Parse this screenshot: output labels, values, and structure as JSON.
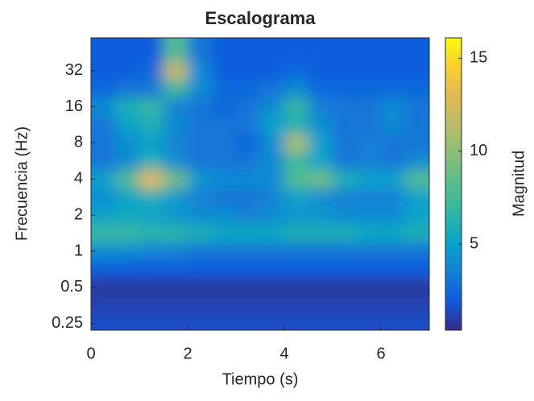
{
  "chart_data": {
    "type": "heatmap",
    "title": "Escalograma",
    "xlabel": "Tiempo (s)",
    "ylabel": "Frecuencia (Hz)",
    "colorbar_label": "Magnitud",
    "colormap": "parula",
    "yscale": "log",
    "xlim": [
      0,
      7
    ],
    "ylim": [
      0.22,
      60
    ],
    "clim": [
      0.37,
      16.1
    ],
    "xticks": [
      0,
      2,
      4,
      6
    ],
    "yticks": [
      0.25,
      0.5,
      1,
      2,
      4,
      8,
      16,
      32
    ],
    "cticks": [
      5,
      10,
      15
    ],
    "x": [
      0.25,
      0.75,
      1.25,
      1.75,
      2.25,
      2.75,
      3.25,
      3.75,
      4.25,
      4.75,
      5.25,
      5.75,
      6.25,
      6.75
    ],
    "y": [
      0.25,
      0.35,
      0.5,
      0.71,
      1,
      1.41,
      2,
      2.83,
      4,
      5.66,
      8,
      11.3,
      16,
      22.6,
      32,
      45
    ],
    "z": [
      [
        1.5,
        1.5,
        1.5,
        1.5,
        1.5,
        1.5,
        1.5,
        1.5,
        1.5,
        1.5,
        1.5,
        1.5,
        1.5,
        1.5
      ],
      [
        1.2,
        1.2,
        1.2,
        1.2,
        1.2,
        1.2,
        1.2,
        1.2,
        1.2,
        1.2,
        1.2,
        1.2,
        1.2,
        1.2
      ],
      [
        0.8,
        0.8,
        0.8,
        0.8,
        0.8,
        0.8,
        0.8,
        0.8,
        0.8,
        0.8,
        0.8,
        0.8,
        0.8,
        0.8
      ],
      [
        2,
        2,
        2,
        2,
        2,
        2,
        2,
        2,
        2,
        2,
        2,
        2,
        2,
        2
      ],
      [
        4,
        4,
        3.5,
        3.5,
        3,
        3,
        3,
        3,
        3,
        3,
        3,
        3,
        3,
        3
      ],
      [
        7,
        7,
        6.5,
        6.5,
        6,
        5.5,
        5.5,
        5.5,
        6,
        6,
        6,
        5.5,
        5.5,
        6
      ],
      [
        5,
        5.5,
        5,
        4.5,
        4,
        4,
        3.5,
        4,
        4.5,
        4.5,
        4,
        4,
        4,
        5
      ],
      [
        4,
        5,
        6,
        4.5,
        3.5,
        3,
        3,
        3.5,
        5,
        4,
        3.5,
        3.5,
        3.5,
        5
      ],
      [
        5,
        8,
        13,
        9,
        4.5,
        4,
        4,
        4,
        8,
        9,
        6,
        5,
        5,
        8
      ],
      [
        3,
        4,
        6,
        4,
        3,
        3,
        3,
        4,
        7,
        5,
        3,
        3.5,
        3,
        4
      ],
      [
        3,
        4,
        5,
        3.5,
        3,
        3,
        2.5,
        4,
        11,
        5,
        3,
        3.5,
        3,
        3
      ],
      [
        3,
        5,
        6,
        4,
        3,
        3,
        3,
        5,
        6,
        4,
        3,
        3,
        4,
        3
      ],
      [
        4,
        6,
        7,
        3.5,
        3,
        2.5,
        3,
        4,
        7,
        3.5,
        3,
        3,
        4,
        3
      ],
      [
        2.5,
        3,
        3,
        7,
        4,
        2.5,
        2.5,
        3,
        4,
        2.5,
        2.5,
        2.5,
        2.5,
        2.5
      ],
      [
        2,
        2,
        2.5,
        12,
        4,
        2,
        2,
        2,
        2.5,
        2,
        2,
        2,
        2,
        2
      ],
      [
        2,
        2,
        2,
        8,
        3,
        2,
        2,
        2,
        2,
        2,
        2,
        2,
        2,
        2
      ]
    ]
  }
}
